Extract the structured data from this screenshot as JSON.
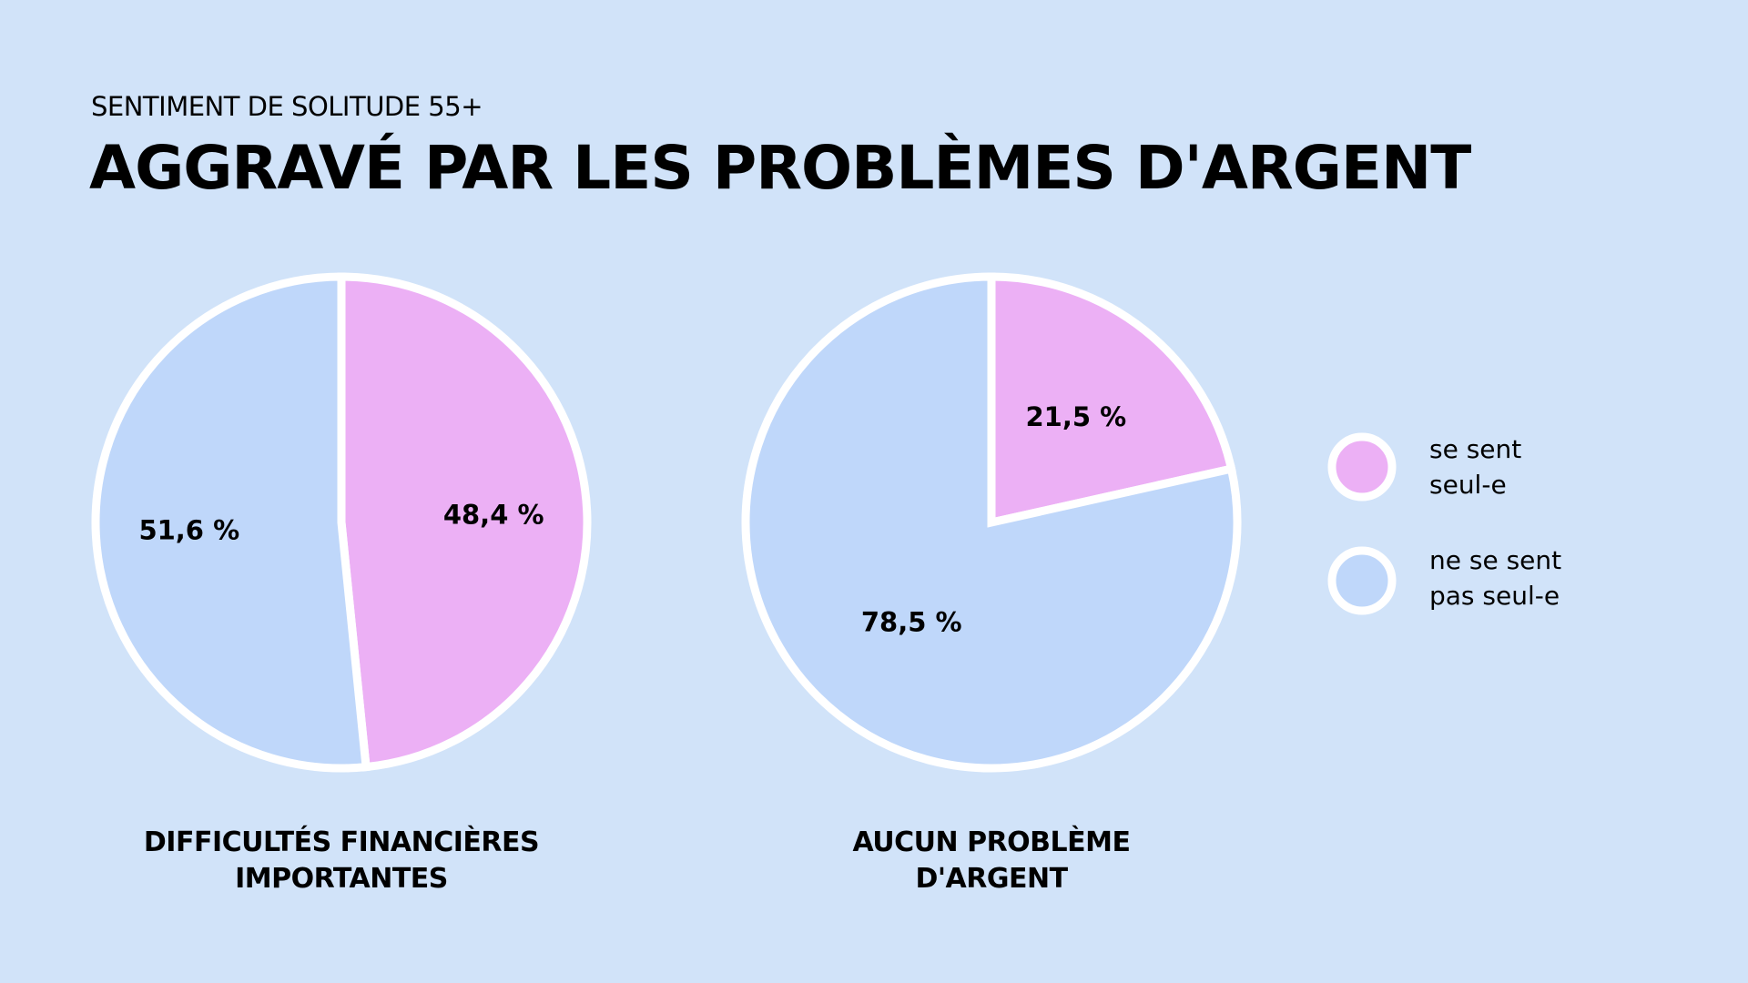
{
  "header": {
    "subtitle": "SENTIMENT DE SOLITUDE 55+",
    "title": "AGGRAVÉ PAR LES PROBLÈMES D'ARGENT"
  },
  "colors": {
    "background": "#d1e3f9",
    "lonely": "#ecb0f5",
    "not_lonely": "#bfd7fa",
    "border": "#ffffff"
  },
  "chart_data": [
    {
      "type": "pie",
      "title_line1": "DIFFICULTÉS FINANCIÈRES",
      "title_line2": "IMPORTANTES",
      "slices": [
        {
          "name": "se sent seul-e",
          "value": 48.4,
          "label": "48,4 %"
        },
        {
          "name": "ne se sent pas seul-e",
          "value": 51.6,
          "label": "51,6 %"
        }
      ]
    },
    {
      "type": "pie",
      "title_line1": "AUCUN PROBLÈME",
      "title_line2": "D'ARGENT",
      "slices": [
        {
          "name": "se sent seul-e",
          "value": 21.5,
          "label": "21,5 %"
        },
        {
          "name": "ne se sent pas seul-e",
          "value": 78.5,
          "label": "78,5 %"
        }
      ]
    }
  ],
  "legend": [
    {
      "line1": "se sent",
      "line2": "seul-e"
    },
    {
      "line1": "ne se sent",
      "line2": "pas seul-e"
    }
  ]
}
